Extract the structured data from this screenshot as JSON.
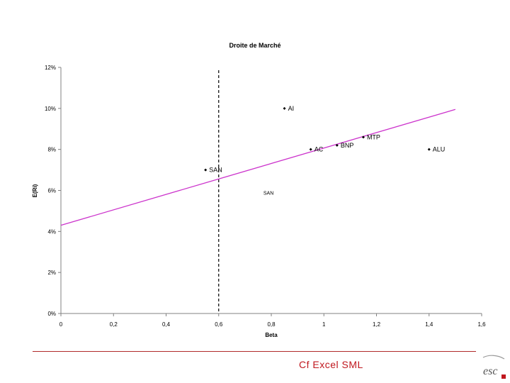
{
  "chart_data": {
    "type": "scatter",
    "title": "Droite de Marché",
    "xlabel": "Beta",
    "ylabel": "E(Ri)",
    "xlim": [
      0,
      1.6
    ],
    "ylim": [
      0,
      12
    ],
    "x_ticks": [
      "0",
      "0,2",
      "0,4",
      "0,6",
      "0,8",
      "1",
      "1,2",
      "1,4",
      "1,6"
    ],
    "y_ticks": [
      "0%",
      "2%",
      "4%",
      "6%",
      "8%",
      "10%",
      "12%"
    ],
    "points": [
      {
        "label": "AI",
        "x": 0.85,
        "y": 10.0
      },
      {
        "label": "AC",
        "x": 0.95,
        "y": 8.0
      },
      {
        "label": "BNP",
        "x": 1.05,
        "y": 8.2
      },
      {
        "label": "MTP",
        "x": 1.15,
        "y": 8.6
      },
      {
        "label": "ALU",
        "x": 1.4,
        "y": 8.0
      },
      {
        "label": "SAN",
        "x": 0.55,
        "y": 7.0
      }
    ],
    "line": {
      "name": "SML",
      "x": [
        0,
        1.5
      ],
      "y": [
        4.3,
        9.95
      ],
      "color": "#cc33cc"
    },
    "vline": {
      "x": 0.6
    },
    "annotation": "SAN",
    "grid": false
  },
  "footer": {
    "text": "Cf Excel SML"
  },
  "colors": {
    "line": "#cc33cc",
    "footer_rule": "#b02a2a",
    "footer_text": "#c0171e"
  }
}
